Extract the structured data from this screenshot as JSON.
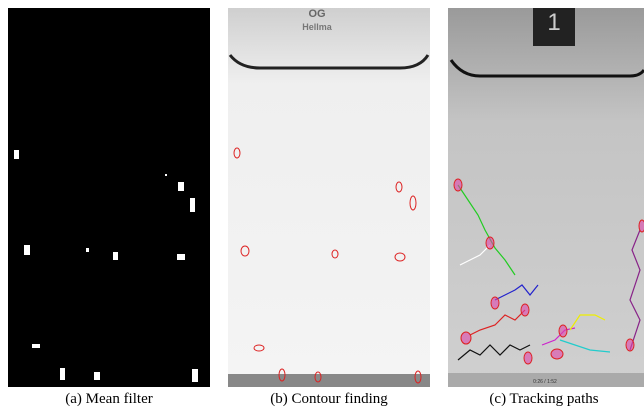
{
  "panels": [
    {
      "caption": "(a) Mean filter"
    },
    {
      "caption": "(b) Contour finding",
      "labels": [
        "OG",
        "Hellma"
      ]
    },
    {
      "caption": "(c) Tracking paths",
      "labels": [
        "1",
        "0:26 / 1:52"
      ]
    }
  ]
}
